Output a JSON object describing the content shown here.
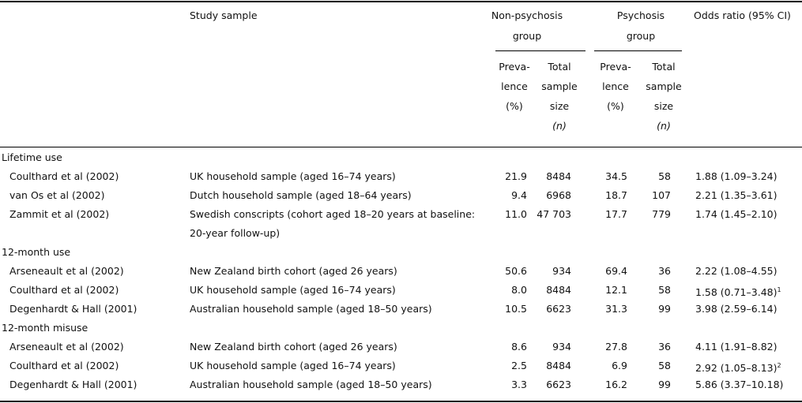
{
  "header": {
    "study_sample": "Study sample",
    "non_psychosis": [
      "Non-psychosis",
      "group"
    ],
    "psychosis": [
      "Psychosis",
      "group"
    ],
    "odds_ratio": "Odds ratio (95% CI)",
    "prevalence": [
      "Preva-",
      "lence",
      "(%)"
    ],
    "total": [
      "Total",
      "sample",
      "size",
      "(n)"
    ]
  },
  "sections": [
    {
      "title": "Lifetime use",
      "rows": [
        {
          "study": "Coulthard et al (2002)",
          "sample": [
            "UK household sample (aged 16–74 years)"
          ],
          "np_prev": "21.9",
          "np_n": "8484",
          "p_prev": "34.5",
          "p_n": "58",
          "or": "1.88 (1.09–3.24)"
        },
        {
          "study": "van Os et al (2002)",
          "sample": [
            "Dutch household sample (aged 18–64 years)"
          ],
          "np_prev": "9.4",
          "np_n": "6968",
          "p_prev": "18.7",
          "p_n": "107",
          "or": "2.21 (1.35–3.61)"
        },
        {
          "study": "Zammit et al (2002)",
          "sample": [
            "Swedish conscripts (cohort aged 18–20 years at baseline:",
            "20-year follow-up)"
          ],
          "np_prev": "11.0",
          "np_n": "47 703",
          "p_prev": "17.7",
          "p_n": "779",
          "or": "1.74 (1.45–2.10)"
        }
      ]
    },
    {
      "title": "12-month use",
      "rows": [
        {
          "study": "Arseneault et al (2002)",
          "sample": [
            "New Zealand birth cohort (aged 26 years)"
          ],
          "np_prev": "50.6",
          "np_n": "934",
          "p_prev": "69.4",
          "p_n": "36",
          "or": "2.22 (1.08–4.55)"
        },
        {
          "study": "Coulthard et al (2002)",
          "sample": [
            "UK household sample (aged 16–74 years)"
          ],
          "np_prev": "8.0",
          "np_n": "8484",
          "p_prev": "12.1",
          "p_n": "58",
          "or": "1.58 (0.71–3.48)",
          "note": "1"
        },
        {
          "study": "Degenhardt & Hall (2001)",
          "sample": [
            "Australian household sample (aged 18–50 years)"
          ],
          "np_prev": "10.5",
          "np_n": "6623",
          "p_prev": "31.3",
          "p_n": "99",
          "or": "3.98 (2.59–6.14)"
        }
      ]
    },
    {
      "title": "12-month misuse",
      "rows": [
        {
          "study": "Arseneault et al (2002)",
          "sample": [
            "New Zealand birth cohort (aged 26 years)"
          ],
          "np_prev": "8.6",
          "np_n": "934",
          "p_prev": "27.8",
          "p_n": "36",
          "or": "4.11 (1.91–8.82)"
        },
        {
          "study": "Coulthard et al (2002)",
          "sample": [
            "UK household sample (aged 16–74 years)"
          ],
          "np_prev": "2.5",
          "np_n": "8484",
          "p_prev": "6.9",
          "p_n": "58",
          "or": "2.92 (1.05–8.13)",
          "note": "2"
        },
        {
          "study": "Degenhardt & Hall (2001)",
          "sample": [
            "Australian household sample (aged 18–50 years)"
          ],
          "np_prev": "3.3",
          "np_n": "6623",
          "p_prev": "16.2",
          "p_n": "99",
          "or": "5.86 (3.37–10.18)"
        }
      ]
    }
  ]
}
